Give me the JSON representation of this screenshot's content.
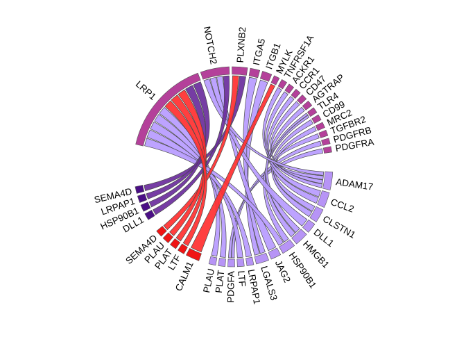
{
  "chart_data": {
    "type": "chord",
    "groups": [
      {
        "name": "PDGFRA",
        "kind": "receptor",
        "start": 8.4,
        "end": 11.7
      },
      {
        "name": "PDGFRB",
        "kind": "receptor",
        "start": 13.3,
        "end": 16.6
      },
      {
        "name": "TGFBR2",
        "kind": "receptor",
        "start": 18.2,
        "end": 21.5
      },
      {
        "name": "MRC2",
        "kind": "receptor",
        "start": 23.1,
        "end": 26.4
      },
      {
        "name": "CD99",
        "kind": "receptor",
        "start": 28.0,
        "end": 31.3
      },
      {
        "name": "TLR4",
        "kind": "receptor",
        "start": 32.9,
        "end": 36.2
      },
      {
        "name": "AGTRAP",
        "kind": "receptor",
        "start": 37.8,
        "end": 41.1
      },
      {
        "name": "CD47",
        "kind": "receptor",
        "start": 42.7,
        "end": 46.0
      },
      {
        "name": "CCR1",
        "kind": "receptor",
        "start": 47.6,
        "end": 50.9
      },
      {
        "name": "ACKR1",
        "kind": "receptor",
        "start": 52.5,
        "end": 55.8
      },
      {
        "name": "TNFRSF1A",
        "kind": "receptor",
        "start": 57.4,
        "end": 60.7
      },
      {
        "name": "MYLK",
        "kind": "receptor",
        "start": 62.3,
        "end": 65.6
      },
      {
        "name": "ITGB1",
        "kind": "receptor",
        "start": 67.2,
        "end": 72.8
      },
      {
        "name": "ITGA5",
        "kind": "receptor",
        "start": 74.4,
        "end": 80.0
      },
      {
        "name": "PLXNB2",
        "kind": "receptor",
        "start": 81.6,
        "end": 90.6
      },
      {
        "name": "NOTCH2",
        "kind": "receptor",
        "start": 92.2,
        "end": 109.0
      },
      {
        "name": "LRP1",
        "kind": "receptor",
        "start": 110.6,
        "end": 167.0
      },
      {
        "name": "SEMA4D",
        "kind": "ligand-dark",
        "start": 191.5,
        "end": 195.5
      },
      {
        "name": "LRPAP1",
        "kind": "ligand-dark",
        "start": 197.0,
        "end": 201.0
      },
      {
        "name": "HSP90B1",
        "kind": "ligand-dark",
        "start": 202.5,
        "end": 206.5
      },
      {
        "name": "DLL1",
        "kind": "ligand-dark",
        "start": 208.0,
        "end": 212.0
      },
      {
        "name": "SEMA4D",
        "kind": "ligand-red",
        "start": 220.0,
        "end": 224.0
      },
      {
        "name": "PLAU",
        "kind": "ligand-red",
        "start": 225.5,
        "end": 229.5
      },
      {
        "name": "PLAT",
        "kind": "ligand-red",
        "start": 231.0,
        "end": 235.0
      },
      {
        "name": "LTF",
        "kind": "ligand-red",
        "start": 236.5,
        "end": 240.5
      },
      {
        "name": "CALM1",
        "kind": "ligand-red",
        "start": 242.0,
        "end": 250.0
      },
      {
        "name": "PLAU",
        "kind": "ligand-light",
        "start": 256.0,
        "end": 260.0
      },
      {
        "name": "PLAT",
        "kind": "ligand-light",
        "start": 261.5,
        "end": 265.5
      },
      {
        "name": "PDGFA",
        "kind": "ligand-light",
        "start": 267.0,
        "end": 271.0
      },
      {
        "name": "LTF",
        "kind": "ligand-light",
        "start": 272.5,
        "end": 276.5
      },
      {
        "name": "LRPAP1",
        "kind": "ligand-light",
        "start": 278.0,
        "end": 282.0
      },
      {
        "name": "LGALS3",
        "kind": "ligand-light",
        "start": 283.5,
        "end": 291.0
      },
      {
        "name": "JAG2",
        "kind": "ligand-light",
        "start": 292.5,
        "end": 298.5
      },
      {
        "name": "HSP90B1",
        "kind": "ligand-light",
        "start": 300.0,
        "end": 308.0
      },
      {
        "name": "HMGB1",
        "kind": "ligand-light",
        "start": 309.5,
        "end": 317.5
      },
      {
        "name": "DLL1",
        "kind": "ligand-light",
        "start": 319.0,
        "end": 325.0
      },
      {
        "name": "CLSTN1",
        "kind": "ligand-light",
        "start": 326.5,
        "end": 334.5
      },
      {
        "name": "CCL2",
        "kind": "ligand-light",
        "start": 336.0,
        "end": 345.0
      },
      {
        "name": "ADAM17",
        "kind": "ligand-light",
        "start": 346.5,
        "end": 357.0
      }
    ],
    "links": [
      {
        "from": "SEMA4D",
        "from_kind": "ligand-dark",
        "to": "PLXNB2",
        "color": "purple"
      },
      {
        "from": "LRPAP1",
        "from_kind": "ligand-dark",
        "to": "LRP1",
        "color": "purple"
      },
      {
        "from": "HSP90B1",
        "from_kind": "ligand-dark",
        "to": "LRP1",
        "color": "purple"
      },
      {
        "from": "DLL1",
        "from_kind": "ligand-dark",
        "to": "NOTCH2",
        "color": "purple"
      },
      {
        "from": "SEMA4D",
        "from_kind": "ligand-red",
        "to": "PLXNB2",
        "color": "red"
      },
      {
        "from": "PLAU",
        "from_kind": "ligand-red",
        "to": "LRP1",
        "color": "red"
      },
      {
        "from": "PLAT",
        "from_kind": "ligand-red",
        "to": "LRP1",
        "color": "red"
      },
      {
        "from": "LTF",
        "from_kind": "ligand-red",
        "to": "LRP1",
        "color": "red"
      },
      {
        "from": "CALM1",
        "from_kind": "ligand-red",
        "to": "MYLK",
        "color": "red"
      },
      {
        "from": "PLAU",
        "from_kind": "ligand-light",
        "to": "LRP1",
        "color": "lavender"
      },
      {
        "from": "PLAT",
        "from_kind": "ligand-light",
        "to": "LRP1",
        "color": "lavender"
      },
      {
        "from": "PDGFA",
        "from_kind": "ligand-light",
        "to": "PDGFRA",
        "color": "lavender"
      },
      {
        "from": "PDGFA",
        "from_kind": "ligand-light",
        "to": "PDGFRB",
        "color": "lavender"
      },
      {
        "from": "LTF",
        "from_kind": "ligand-light",
        "to": "LRP1",
        "color": "lavender"
      },
      {
        "from": "LRPAP1",
        "from_kind": "ligand-light",
        "to": "LRP1",
        "color": "lavender"
      },
      {
        "from": "LGALS3",
        "from_kind": "ligand-light",
        "to": "ITGB1",
        "color": "lavender"
      },
      {
        "from": "LGALS3",
        "from_kind": "ligand-light",
        "to": "ITGA5",
        "color": "lavender"
      },
      {
        "from": "JAG2",
        "from_kind": "ligand-light",
        "to": "NOTCH2",
        "color": "lavender"
      },
      {
        "from": "HSP90B1",
        "from_kind": "ligand-light",
        "to": "LRP1",
        "color": "lavender"
      },
      {
        "from": "HSP90B1",
        "from_kind": "ligand-light",
        "to": "TLR4",
        "color": "lavender"
      },
      {
        "from": "HMGB1",
        "from_kind": "ligand-light",
        "to": "TLR4",
        "color": "lavender"
      },
      {
        "from": "HMGB1",
        "from_kind": "ligand-light",
        "to": "AGTRAP",
        "color": "lavender"
      },
      {
        "from": "DLL1",
        "from_kind": "ligand-light",
        "to": "NOTCH2",
        "color": "lavender"
      },
      {
        "from": "CLSTN1",
        "from_kind": "ligand-light",
        "to": "CD99",
        "color": "lavender"
      },
      {
        "from": "CLSTN1",
        "from_kind": "ligand-light",
        "to": "MRC2",
        "color": "lavender"
      },
      {
        "from": "CCL2",
        "from_kind": "ligand-light",
        "to": "CCR1",
        "color": "lavender"
      },
      {
        "from": "CCL2",
        "from_kind": "ligand-light",
        "to": "ACKR1",
        "color": "lavender"
      },
      {
        "from": "ADAM17",
        "from_kind": "ligand-light",
        "to": "TNFRSF1A",
        "color": "lavender"
      },
      {
        "from": "ADAM17",
        "from_kind": "ligand-light",
        "to": "CD47",
        "color": "lavender"
      },
      {
        "from": "ADAM17",
        "from_kind": "ligand-light",
        "to": "TGFBR2",
        "color": "lavender"
      },
      {
        "from": "ADAM17",
        "from_kind": "ligand-light",
        "to": "NOTCH2",
        "color": "lavender"
      }
    ],
    "colors": {
      "receptor": "#b4409a",
      "ligand-dark": "#4b0f86",
      "ligand-red": "#f01414",
      "ligand-light": "#b794f6",
      "purple": "#6a2c9c",
      "red": "#ff2f2f",
      "lavender": "#b79bff"
    }
  }
}
